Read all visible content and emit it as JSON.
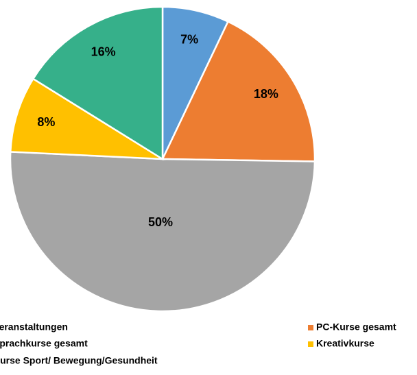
{
  "chart_data": {
    "type": "pie",
    "categories": [
      "Veranstaltungen",
      "PC-Kurse gesamt",
      "Sprachkurse gesamt",
      "Kreativkurse",
      "Kurse Sport/ Bewegung/Gesundheit"
    ],
    "values": [
      7,
      18,
      50,
      8,
      16
    ],
    "value_labels": [
      "7%",
      "18%",
      "50%",
      "8%",
      "16%"
    ],
    "colors": [
      "#5b9bd5",
      "#ed7d31",
      "#a5a5a5",
      "#ffc000",
      "#36b08a"
    ],
    "legend": "bottom"
  }
}
